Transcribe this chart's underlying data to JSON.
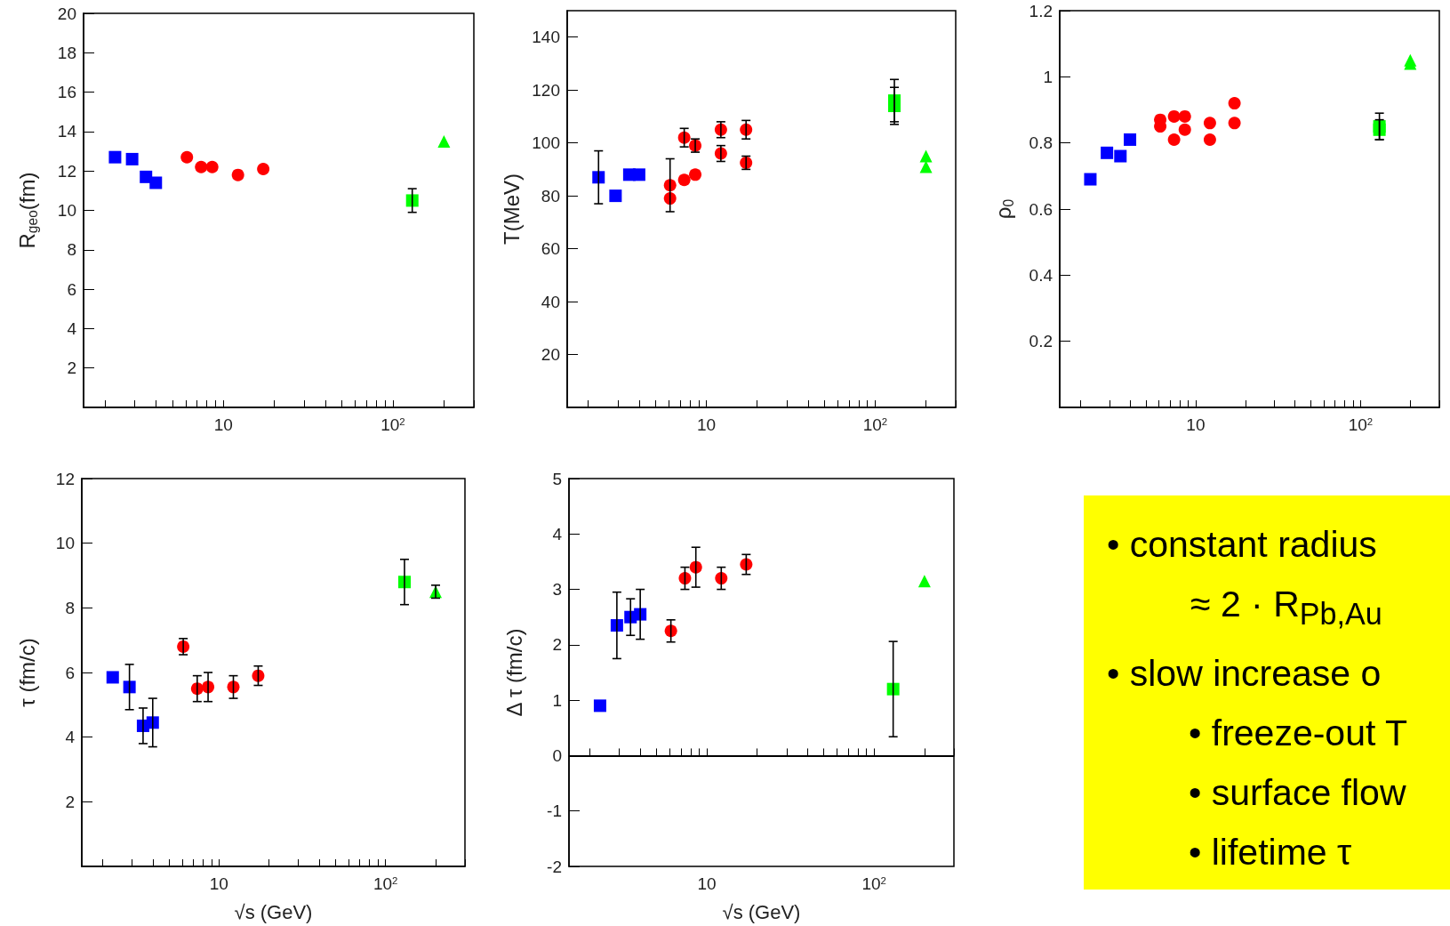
{
  "chart_data": [
    {
      "type": "scatter",
      "ylabel": "R$_{geo}$(fm)",
      "log": "x",
      "xlim": [
        1.5,
        300
      ],
      "ylim": [
        0,
        20
      ],
      "xticks": [
        {
          "value": 2,
          "label": null
        },
        {
          "value": 3,
          "label": null
        },
        {
          "value": 4,
          "label": null
        },
        {
          "value": 5,
          "label": null
        },
        {
          "value": 6,
          "label": null
        },
        {
          "value": 7,
          "label": null
        },
        {
          "value": 8,
          "label": null
        },
        {
          "value": 9,
          "label": null
        },
        {
          "value": 10,
          "label": "10"
        },
        {
          "value": 20,
          "label": null
        },
        {
          "value": 30,
          "label": null
        },
        {
          "value": 40,
          "label": null
        },
        {
          "value": 50,
          "label": null
        },
        {
          "value": 60,
          "label": null
        },
        {
          "value": 70,
          "label": null
        },
        {
          "value": 80,
          "label": null
        },
        {
          "value": 90,
          "label": null
        },
        {
          "value": 100,
          "label": "10$^{2}$"
        },
        {
          "value": 200,
          "label": null
        },
        {
          "value": 300,
          "label": null
        }
      ],
      "yticks": [
        2,
        4,
        6,
        8,
        10,
        12,
        14,
        16,
        18,
        20
      ],
      "series": [
        {
          "color": "#0000ff",
          "marker": "square",
          "x": [
            2.3,
            2.9,
            3.5,
            4.0
          ],
          "values": [
            12.7,
            12.6,
            11.7,
            11.4
          ]
        },
        {
          "color": "#ff0000",
          "marker": "circle",
          "x": [
            6.1,
            7.4,
            8.6,
            12.2,
            17.2
          ],
          "values": [
            12.7,
            12.2,
            12.2,
            11.8,
            12.1
          ]
        },
        {
          "color": "#00ff00",
          "marker": "square",
          "x": [
            130
          ],
          "values": [
            10.5
          ],
          "errors": [
            0.6
          ]
        },
        {
          "color": "#00ff00",
          "marker": "triangle",
          "x": [
            200
          ],
          "values": [
            13.5
          ]
        }
      ]
    },
    {
      "type": "scatter",
      "ylabel": "T(MeV)",
      "log": "x",
      "xlim": [
        1.5,
        300
      ],
      "ylim": [
        0,
        150
      ],
      "xticks": [
        {
          "value": 2,
          "label": null
        },
        {
          "value": 3,
          "label": null
        },
        {
          "value": 4,
          "label": null
        },
        {
          "value": 5,
          "label": null
        },
        {
          "value": 6,
          "label": null
        },
        {
          "value": 7,
          "label": null
        },
        {
          "value": 8,
          "label": null
        },
        {
          "value": 9,
          "label": null
        },
        {
          "value": 10,
          "label": "10"
        },
        {
          "value": 20,
          "label": null
        },
        {
          "value": 30,
          "label": null
        },
        {
          "value": 40,
          "label": null
        },
        {
          "value": 50,
          "label": null
        },
        {
          "value": 60,
          "label": null
        },
        {
          "value": 70,
          "label": null
        },
        {
          "value": 80,
          "label": null
        },
        {
          "value": 90,
          "label": null
        },
        {
          "value": 100,
          "label": "10$^{2}$"
        },
        {
          "value": 200,
          "label": null
        },
        {
          "value": 300,
          "label": null
        }
      ],
      "yticks": [
        20,
        40,
        60,
        80,
        100,
        120,
        140
      ],
      "series": [
        {
          "color": "#0000ff",
          "marker": "square",
          "x": [
            2.3,
            2.9,
            3.5,
            4.0
          ],
          "values": [
            87,
            80,
            88,
            88
          ],
          "errors": [
            10,
            null,
            null,
            null
          ]
        },
        {
          "color": "#ff0000",
          "marker": "circle",
          "x": [
            6.1,
            7.4,
            8.6,
            12.2,
            17.2
          ],
          "values": [
            79,
            86,
            88,
            96,
            92.5
          ],
          "errors": [
            null,
            null,
            null,
            3,
            2.5
          ]
        },
        {
          "color": "#ff0000",
          "marker": "circle",
          "x": [
            6.1,
            7.4,
            8.6,
            12.2,
            17.2
          ],
          "values": [
            84,
            102,
            99,
            105,
            105
          ],
          "errors": [
            10,
            3.5,
            2.5,
            3,
            3.5
          ]
        },
        {
          "color": "#00ff00",
          "marker": "square",
          "x": [
            130
          ],
          "values": [
            114
          ],
          "errors": [
            7
          ]
        },
        {
          "color": "#00ff00",
          "marker": "square",
          "x": [
            130
          ],
          "values": [
            116
          ],
          "errors": [
            8
          ]
        },
        {
          "color": "#00ff00",
          "marker": "triangle",
          "x": [
            200
          ],
          "values": [
            91
          ]
        },
        {
          "color": "#00ff00",
          "marker": "triangle",
          "x": [
            200
          ],
          "values": [
            95
          ]
        }
      ]
    },
    {
      "type": "scatter",
      "ylabel": "ρ$_{0}$",
      "log": "x",
      "xlim": [
        1.5,
        300
      ],
      "ylim": [
        0,
        1.2
      ],
      "xticks": [
        {
          "value": 2,
          "label": null
        },
        {
          "value": 3,
          "label": null
        },
        {
          "value": 4,
          "label": null
        },
        {
          "value": 5,
          "label": null
        },
        {
          "value": 6,
          "label": null
        },
        {
          "value": 7,
          "label": null
        },
        {
          "value": 8,
          "label": null
        },
        {
          "value": 9,
          "label": null
        },
        {
          "value": 10,
          "label": "10"
        },
        {
          "value": 20,
          "label": null
        },
        {
          "value": 30,
          "label": null
        },
        {
          "value": 40,
          "label": null
        },
        {
          "value": 50,
          "label": null
        },
        {
          "value": 60,
          "label": null
        },
        {
          "value": 70,
          "label": null
        },
        {
          "value": 80,
          "label": null
        },
        {
          "value": 90,
          "label": null
        },
        {
          "value": 100,
          "label": "10$^{2}$"
        },
        {
          "value": 200,
          "label": null
        },
        {
          "value": 300,
          "label": null
        }
      ],
      "yticks": [
        0.2,
        0.4,
        0.6,
        0.8,
        1,
        1.2
      ],
      "series": [
        {
          "color": "#0000ff",
          "marker": "square",
          "x": [
            2.3,
            2.9,
            3.5,
            4.0
          ],
          "values": [
            0.69,
            0.77,
            0.76,
            0.81
          ]
        },
        {
          "color": "#ff0000",
          "marker": "circle",
          "x": [
            6.1,
            7.4,
            8.6,
            12.2,
            17.2
          ],
          "values": [
            0.87,
            0.88,
            0.88,
            0.86,
            0.92
          ]
        },
        {
          "color": "#ff0000",
          "marker": "circle",
          "x": [
            6.1,
            7.4,
            8.6,
            12.2,
            17.2
          ],
          "values": [
            0.85,
            0.81,
            0.84,
            0.81,
            0.86
          ]
        },
        {
          "color": "#00ff00",
          "marker": "square",
          "x": [
            130
          ],
          "values": [
            0.85
          ],
          "errors": [
            0.04
          ]
        },
        {
          "color": "#00ff00",
          "marker": "square",
          "x": [
            130
          ],
          "values": [
            0.84
          ],
          "errors": [
            0.03
          ]
        },
        {
          "color": "#00ff00",
          "marker": "triangle",
          "x": [
            200
          ],
          "values": [
            1.05
          ]
        },
        {
          "color": "#00ff00",
          "marker": "triangle",
          "x": [
            200
          ],
          "values": [
            1.04
          ]
        }
      ]
    },
    {
      "type": "scatter",
      "ylabel": "τ (fm/c)",
      "xlabel": "√s (GeV)",
      "log": "x",
      "xlim": [
        1.5,
        300
      ],
      "ylim": [
        0,
        12
      ],
      "xticks": [
        {
          "value": 2,
          "label": null
        },
        {
          "value": 3,
          "label": null
        },
        {
          "value": 4,
          "label": null
        },
        {
          "value": 5,
          "label": null
        },
        {
          "value": 6,
          "label": null
        },
        {
          "value": 7,
          "label": null
        },
        {
          "value": 8,
          "label": null
        },
        {
          "value": 9,
          "label": null
        },
        {
          "value": 10,
          "label": "10"
        },
        {
          "value": 20,
          "label": null
        },
        {
          "value": 30,
          "label": null
        },
        {
          "value": 40,
          "label": null
        },
        {
          "value": 50,
          "label": null
        },
        {
          "value": 60,
          "label": null
        },
        {
          "value": 70,
          "label": null
        },
        {
          "value": 80,
          "label": null
        },
        {
          "value": 90,
          "label": null
        },
        {
          "value": 100,
          "label": "10$^{2}$"
        },
        {
          "value": 200,
          "label": null
        },
        {
          "value": 300,
          "label": null
        }
      ],
      "yticks": [
        2,
        4,
        6,
        8,
        10,
        12
      ],
      "series": [
        {
          "color": "#0000ff",
          "marker": "square",
          "x": [
            2.3,
            2.9,
            3.5,
            4.0
          ],
          "values": [
            5.85,
            5.55,
            4.35,
            4.45
          ],
          "errors": [
            null,
            0.7,
            0.55,
            0.75
          ]
        },
        {
          "color": "#ff0000",
          "marker": "circle",
          "x": [
            6.1,
            7.4,
            8.6,
            12.2,
            17.2
          ],
          "values": [
            6.8,
            5.5,
            5.55,
            5.55,
            5.9
          ],
          "errors": [
            0.25,
            0.4,
            0.45,
            0.35,
            0.3
          ]
        },
        {
          "color": "#00ff00",
          "marker": "square",
          "x": [
            130
          ],
          "values": [
            8.8
          ],
          "errors": [
            0.7
          ]
        },
        {
          "color": "#00ff00",
          "marker": "triangle",
          "x": [
            200
          ],
          "values": [
            8.5
          ],
          "errors": [
            0.2
          ]
        }
      ]
    },
    {
      "type": "scatter",
      "ylabel": "Δ τ (fm/c)",
      "xlabel": "√s (GeV)",
      "log": "x",
      "xlim": [
        1.5,
        300
      ],
      "ylim": [
        -2,
        5
      ],
      "xticks": [
        {
          "value": 2,
          "label": null
        },
        {
          "value": 3,
          "label": null
        },
        {
          "value": 4,
          "label": null
        },
        {
          "value": 5,
          "label": null
        },
        {
          "value": 6,
          "label": null
        },
        {
          "value": 7,
          "label": null
        },
        {
          "value": 8,
          "label": null
        },
        {
          "value": 9,
          "label": null
        },
        {
          "value": 10,
          "label": "10"
        },
        {
          "value": 20,
          "label": null
        },
        {
          "value": 30,
          "label": null
        },
        {
          "value": 40,
          "label": null
        },
        {
          "value": 50,
          "label": null
        },
        {
          "value": 60,
          "label": null
        },
        {
          "value": 70,
          "label": null
        },
        {
          "value": 80,
          "label": null
        },
        {
          "value": 90,
          "label": null
        },
        {
          "value": 100,
          "label": "10$^{2}$"
        },
        {
          "value": 200,
          "label": null
        },
        {
          "value": 300,
          "label": null
        }
      ],
      "yticks": [
        -2,
        -1,
        0,
        1,
        2,
        3,
        4,
        5
      ],
      "ref_lines": [
        {
          "axis": "y",
          "value": 0,
          "label": null,
          "color": "#000000"
        }
      ],
      "series": [
        {
          "color": "#0000ff",
          "marker": "square",
          "x": [
            2.3,
            2.9,
            3.5,
            4.0
          ],
          "values": [
            0.9,
            2.35,
            2.5,
            2.55
          ],
          "errors": [
            null,
            0.6,
            0.33,
            0.45
          ]
        },
        {
          "color": "#ff0000",
          "marker": "circle",
          "x": [
            6.1,
            7.4,
            8.6,
            12.2,
            17.2
          ],
          "values": [
            2.25,
            3.2,
            3.4,
            3.2,
            3.45
          ],
          "errors": [
            0.2,
            0.2,
            0.36,
            0.2,
            0.18
          ]
        },
        {
          "color": "#00ff00",
          "marker": "square",
          "x": [
            130
          ],
          "values": [
            1.2
          ],
          "errors": [
            0.86
          ]
        },
        {
          "color": "#00ff00",
          "marker": "triangle",
          "x": [
            200
          ],
          "values": [
            3.15
          ]
        }
      ]
    },
    {
      "type": "other",
      "annotations": [
        "• constant radius",
        "≈ 2 · R$_{Pb,Au}$",
        "• slow increase o",
        "• freeze-out T",
        "• surface flow",
        "• lifetime τ"
      ]
    }
  ]
}
